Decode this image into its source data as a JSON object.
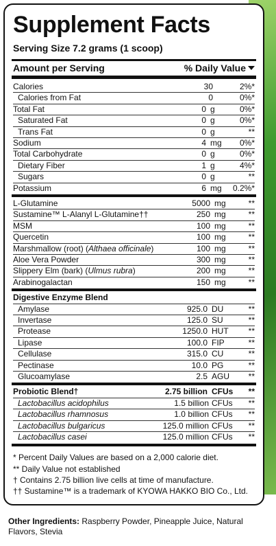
{
  "title": "Supplement Facts",
  "serving_size": "Serving Size 7.2 grams (1 scoop)",
  "header": {
    "amount": "Amount per Serving",
    "daily": "% Daily Value"
  },
  "nutrients": [
    {
      "name": "Calories",
      "amount": "30",
      "unit": "",
      "dv": "2%*",
      "indent": 0
    },
    {
      "name": "Calories from Fat",
      "amount": "0",
      "unit": "",
      "dv": "0%*",
      "indent": 1
    },
    {
      "name": "Total Fat",
      "amount": "0",
      "unit": "g",
      "dv": "0%*",
      "indent": 0
    },
    {
      "name": "Saturated Fat",
      "amount": "0",
      "unit": "g",
      "dv": "0%*",
      "indent": 1
    },
    {
      "name": "Trans Fat",
      "amount": "0",
      "unit": "g",
      "dv": "**",
      "indent": 1
    },
    {
      "name": "Sodium",
      "amount": "4",
      "unit": "mg",
      "dv": "0%*",
      "indent": 0
    },
    {
      "name": "Total Carbohydrate",
      "amount": "0",
      "unit": "g",
      "dv": "0%*",
      "indent": 0
    },
    {
      "name": "Dietary Fiber",
      "amount": "1",
      "unit": "g",
      "dv": "4%*",
      "indent": 1
    },
    {
      "name": "Sugars",
      "amount": "0",
      "unit": "g",
      "dv": "**",
      "indent": 1
    },
    {
      "name": "Potassium",
      "amount": "6",
      "unit": "mg",
      "dv": "0.2%*",
      "indent": 0
    }
  ],
  "ingredients": [
    {
      "name": "L-Glutamine",
      "latin": "",
      "amount": "5000",
      "unit": "mg",
      "dv": "**"
    },
    {
      "name": "Sustamine™ L-Alanyl L-Glutamine††",
      "latin": "",
      "amount": "250",
      "unit": "mg",
      "dv": "**"
    },
    {
      "name": "MSM",
      "latin": "",
      "amount": "100",
      "unit": "mg",
      "dv": "**"
    },
    {
      "name": "Quercetin",
      "latin": "",
      "amount": "100",
      "unit": "mg",
      "dv": "**"
    },
    {
      "name": "Marshmallow (root) (",
      "latin": "Althaea officinale",
      "close": ")",
      "amount": "100",
      "unit": "mg",
      "dv": "**"
    },
    {
      "name": "Aloe Vera Powder",
      "latin": "",
      "amount": "300",
      "unit": "mg",
      "dv": "**"
    },
    {
      "name": "Slippery Elm (bark) (",
      "latin": "Ulmus rubra",
      "close": ")",
      "amount": "200",
      "unit": "mg",
      "dv": "**"
    },
    {
      "name": "Arabinogalactan",
      "latin": "",
      "amount": "150",
      "unit": "mg",
      "dv": "**"
    }
  ],
  "enzyme_blend": {
    "title": "Digestive Enzyme Blend",
    "items": [
      {
        "name": "Amylase",
        "amount": "925.0",
        "unit": "DU",
        "dv": "**"
      },
      {
        "name": "Invertase",
        "amount": "125.0",
        "unit": "SU",
        "dv": "**"
      },
      {
        "name": "Protease",
        "amount": "1250.0",
        "unit": "HUT",
        "dv": "**"
      },
      {
        "name": "Lipase",
        "amount": "100.0",
        "unit": "FIP",
        "dv": "**"
      },
      {
        "name": "Cellulase",
        "amount": "315.0",
        "unit": "CU",
        "dv": "**"
      },
      {
        "name": "Pectinase",
        "amount": "10.0",
        "unit": "PG",
        "dv": "**"
      },
      {
        "name": "Glucoamylase",
        "amount": "2.5",
        "unit": "AGU",
        "dv": "**"
      }
    ]
  },
  "probiotic_blend": {
    "title": "Probiotic Blend†",
    "amount": "2.75 billion",
    "unit": "CFUs",
    "dv": "**",
    "items": [
      {
        "name": "Lactobacillus acidophilus",
        "amount": "1.5 billion",
        "unit": "CFUs",
        "dv": "**"
      },
      {
        "name": "Lactobacillus rhamnosus",
        "amount": "1.0 billion",
        "unit": "CFUs",
        "dv": "**"
      },
      {
        "name": "Lactobacillus bulgaricus",
        "amount": "125.0 million",
        "unit": "CFUs",
        "dv": "**"
      },
      {
        "name": "Lactobacillus casei",
        "amount": "125.0 million",
        "unit": "CFUs",
        "dv": "**"
      }
    ]
  },
  "footnotes": [
    "*  Percent Daily Values are based on a 2,000 calorie diet.",
    "** Daily Value not established",
    "†  Contains 2.75 billion live cells at time of manufacture.",
    "†† Sustamine™ is a trademark of KYOWA HAKKO BIO Co., Ltd."
  ],
  "other_ingredients": {
    "label": "Other Ingredients:",
    "text": " Raspberry Powder, Pineapple Juice, Natural Flavors, Stevia"
  }
}
